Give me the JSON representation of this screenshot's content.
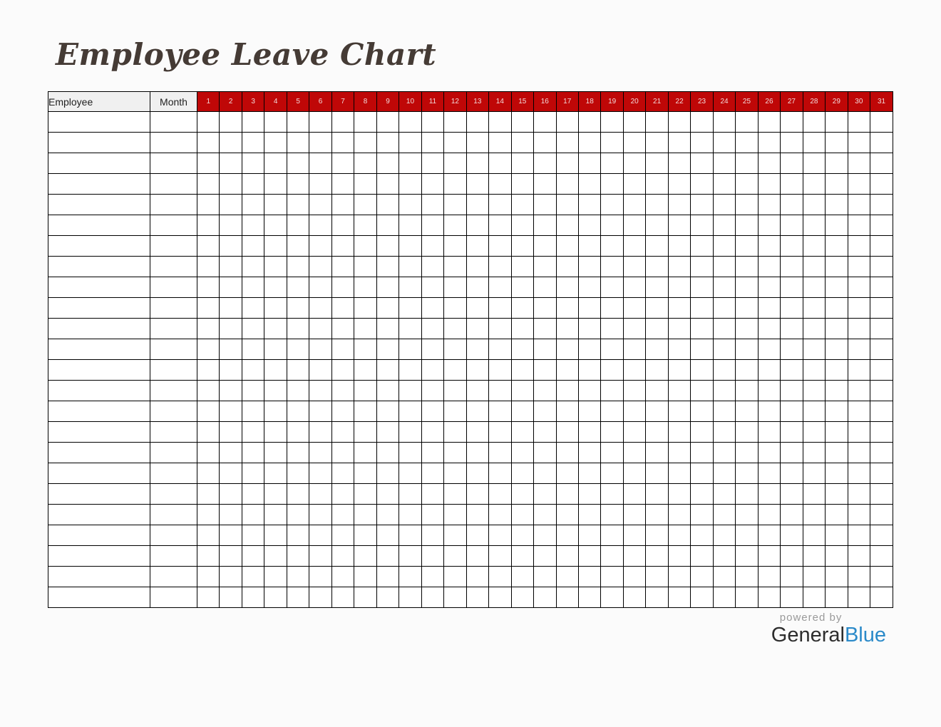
{
  "title": "Employee Leave Chart",
  "table": {
    "employee_header": "Employee",
    "month_header": "Month",
    "days": [
      "1",
      "2",
      "3",
      "4",
      "5",
      "6",
      "7",
      "8",
      "9",
      "10",
      "11",
      "12",
      "13",
      "14",
      "15",
      "16",
      "17",
      "18",
      "19",
      "20",
      "21",
      "22",
      "23",
      "24",
      "25",
      "26",
      "27",
      "28",
      "29",
      "30",
      "31"
    ],
    "row_count": 24
  },
  "footer": {
    "powered_by": "powered by",
    "brand_general": "General",
    "brand_blue": "Blue"
  },
  "colors": {
    "header_red": "#bf0707",
    "day_number_text": "#f2d9d9",
    "header_gray_bg": "#f0f0f0",
    "grid_border": "#000000",
    "title_brown": "#453b35",
    "brand_blue": "#2b8ac9",
    "powered_by_gray": "#9a9a9a"
  }
}
